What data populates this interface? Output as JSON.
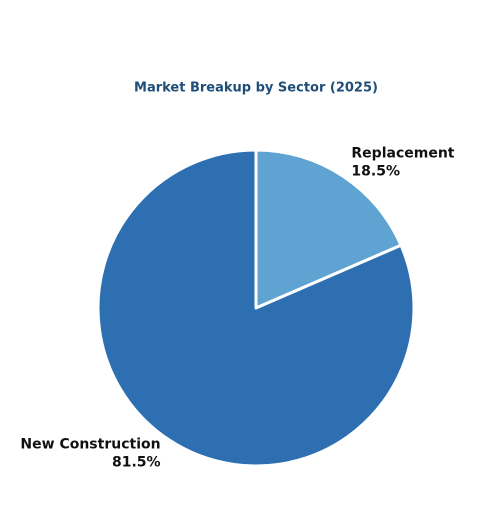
{
  "chart_data": {
    "type": "pie",
    "title": "Market Breakup by Sector (2025)",
    "categories": [
      "Replacement",
      "New Construction"
    ],
    "values": [
      18.5,
      81.5
    ],
    "value_labels": [
      "18.5%",
      "81.5%"
    ],
    "colors": [
      "#5ea3d2",
      "#2d6fb1"
    ]
  }
}
